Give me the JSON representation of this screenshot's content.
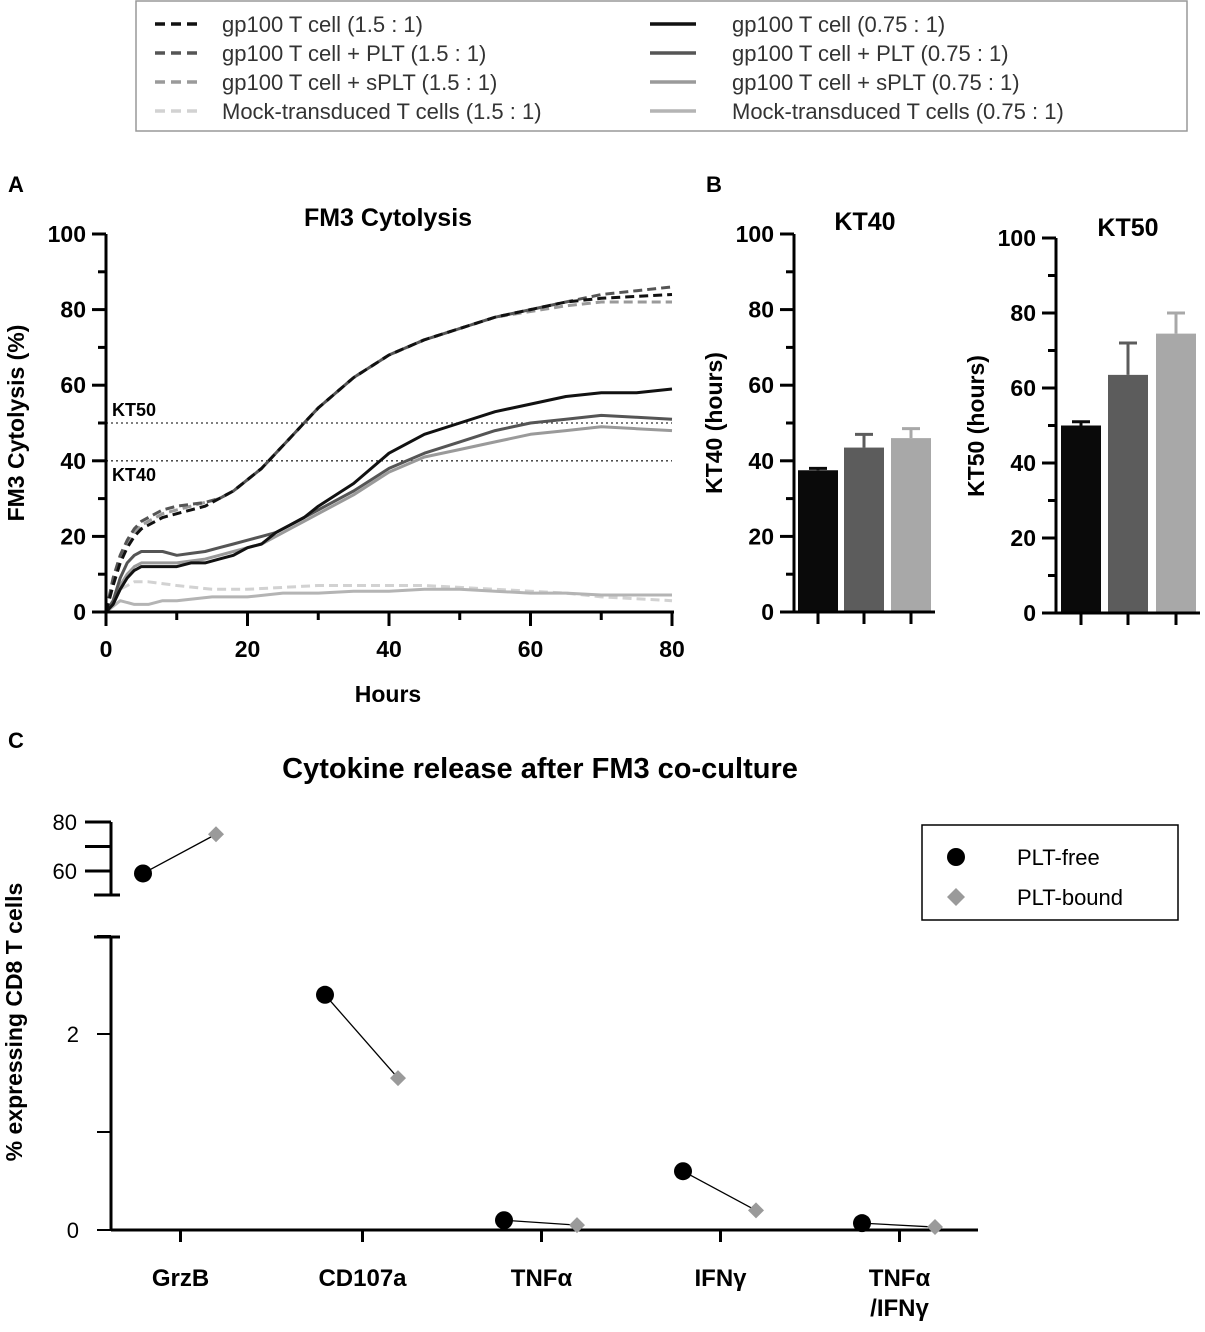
{
  "legend": {
    "entries": [
      {
        "label": "gp100 T cell (1.5 : 1)",
        "color": "#111111",
        "dashed": true
      },
      {
        "label": "gp100 T cell + PLT (1.5 : 1)",
        "color": "#555555",
        "dashed": true
      },
      {
        "label": "gp100 T cell + sPLT (1.5 : 1)",
        "color": "#9a9a9a",
        "dashed": true
      },
      {
        "label": "Mock-transduced T cells  (1.5 : 1)",
        "color": "#d2d2d2",
        "dashed": true
      },
      {
        "label": "gp100 T cell (0.75 : 1)",
        "color": "#111111",
        "dashed": false
      },
      {
        "label": "gp100 T cell + PLT (0.75 : 1)",
        "color": "#555555",
        "dashed": false
      },
      {
        "label": "gp100 T cell + sPLT (0.75 : 1)",
        "color": "#9a9a9a",
        "dashed": false
      },
      {
        "label": "Mock-transduced T cells (0.75 : 1)",
        "color": "#b4b4b4",
        "dashed": false
      }
    ]
  },
  "panels": {
    "a": "A",
    "b": "B",
    "c": "C"
  },
  "chart_data": [
    {
      "type": "line",
      "title": "FM3 Cytolysis",
      "xlabel": "Hours",
      "ylabel": "FM3 Cytolysis (%)",
      "xlim": [
        0,
        80
      ],
      "ylim": [
        0,
        100
      ],
      "xticks": [
        0,
        20,
        40,
        60,
        80
      ],
      "yticks": [
        0,
        20,
        40,
        60,
        80,
        100
      ],
      "reference_lines": [
        {
          "label": "KT50",
          "y": 50
        },
        {
          "label": "KT40",
          "y": 40
        }
      ],
      "series": [
        {
          "name": "gp100 T cell (1.5 : 1)",
          "color": "#111111",
          "dashed": true,
          "x": [
            0,
            1,
            2,
            3,
            4,
            5,
            6,
            8,
            10,
            12,
            14,
            16,
            18,
            20,
            22,
            24,
            26,
            28,
            30,
            35,
            40,
            45,
            50,
            55,
            60,
            65,
            70,
            75,
            80
          ],
          "y": [
            0,
            7,
            13,
            17,
            20,
            22,
            23,
            25,
            26,
            27,
            28,
            30,
            32,
            35,
            38,
            42,
            46,
            50,
            54,
            62,
            68,
            72,
            75,
            78,
            80,
            82,
            83,
            83.5,
            84
          ]
        },
        {
          "name": "gp100 T cell + PLT (1.5 : 1)",
          "color": "#555555",
          "dashed": true,
          "x": [
            0,
            1,
            2,
            3,
            4,
            5,
            6,
            8,
            10,
            12,
            14,
            16,
            18,
            20,
            22,
            24,
            26,
            28,
            30,
            35,
            40,
            45,
            50,
            55,
            60,
            65,
            70,
            75,
            80
          ],
          "y": [
            0,
            9,
            15,
            19,
            22,
            24,
            25,
            27,
            28,
            28.5,
            29,
            30,
            32,
            35,
            38,
            42,
            46,
            50,
            54,
            62,
            68,
            72,
            75,
            78,
            80,
            82,
            84,
            85,
            86
          ]
        },
        {
          "name": "gp100 T cell + sPLT (1.5 : 1)",
          "color": "#9a9a9a",
          "dashed": true,
          "x": [
            0,
            1,
            2,
            3,
            4,
            5,
            6,
            8,
            10,
            12,
            14,
            16,
            18,
            20,
            22,
            24,
            26,
            28,
            30,
            35,
            40,
            45,
            50,
            55,
            60,
            65,
            70,
            75,
            80
          ],
          "y": [
            0,
            8,
            14,
            18,
            21,
            23,
            24,
            26,
            27,
            28,
            29,
            30,
            32,
            35,
            38,
            42,
            46,
            50,
            54,
            62,
            68,
            72,
            75,
            78,
            79.5,
            81,
            82,
            82,
            82
          ]
        },
        {
          "name": "Mock-transduced T cells  (1.5 : 1)",
          "color": "#d2d2d2",
          "dashed": true,
          "x": [
            0,
            2,
            4,
            6,
            10,
            15,
            20,
            25,
            30,
            35,
            40,
            45,
            50,
            55,
            60,
            65,
            70,
            75,
            80
          ],
          "y": [
            0,
            6,
            8,
            8,
            7,
            6,
            6,
            6.5,
            7,
            7,
            7,
            7,
            6.5,
            6,
            5.5,
            5,
            4,
            3.5,
            3
          ]
        },
        {
          "name": "gp100 T cell (0.75 : 1)",
          "color": "#111111",
          "dashed": false,
          "x": [
            0,
            1,
            2,
            3,
            4,
            5,
            6,
            8,
            10,
            12,
            14,
            16,
            18,
            20,
            22,
            24,
            26,
            28,
            30,
            35,
            40,
            45,
            50,
            55,
            60,
            65,
            70,
            75,
            80
          ],
          "y": [
            0,
            2,
            6,
            9,
            11,
            12,
            12,
            12,
            12,
            13,
            13,
            14,
            15,
            17,
            18,
            21,
            23,
            25,
            28,
            34,
            42,
            47,
            50,
            53,
            55,
            57,
            58,
            58,
            59
          ]
        },
        {
          "name": "gp100 T cell + PLT (0.75 : 1)",
          "color": "#555555",
          "dashed": false,
          "x": [
            0,
            1,
            2,
            3,
            4,
            5,
            6,
            8,
            10,
            12,
            14,
            16,
            18,
            20,
            22,
            24,
            26,
            28,
            30,
            35,
            40,
            45,
            50,
            55,
            60,
            65,
            70,
            75,
            80
          ],
          "y": [
            0,
            3,
            9,
            13,
            15,
            16,
            16,
            16,
            15,
            15.5,
            16,
            17,
            18,
            19,
            20,
            21,
            23,
            25,
            27,
            32,
            38,
            42,
            45,
            48,
            50,
            51,
            52,
            51.5,
            51
          ]
        },
        {
          "name": "gp100 T cell + sPLT (0.75 : 1)",
          "color": "#9a9a9a",
          "dashed": false,
          "x": [
            0,
            1,
            2,
            3,
            4,
            5,
            6,
            8,
            10,
            12,
            14,
            16,
            18,
            20,
            22,
            24,
            26,
            28,
            30,
            35,
            40,
            45,
            50,
            55,
            60,
            65,
            70,
            75,
            80
          ],
          "y": [
            0,
            2,
            7,
            10,
            12,
            13,
            13,
            13,
            13,
            13.5,
            14,
            15,
            16,
            17,
            18,
            20,
            22,
            24,
            26,
            31,
            37,
            41,
            43,
            45,
            47,
            48,
            49,
            48.5,
            48
          ]
        },
        {
          "name": "Mock-transduced T cells (0.75 : 1)",
          "color": "#b4b4b4",
          "dashed": false,
          "x": [
            0,
            2,
            4,
            6,
            8,
            10,
            15,
            20,
            25,
            30,
            35,
            40,
            45,
            50,
            55,
            60,
            65,
            70,
            75,
            80
          ],
          "y": [
            0,
            3,
            2,
            2,
            3,
            3,
            4,
            4,
            5,
            5,
            5.5,
            5.5,
            6,
            6,
            5.5,
            5,
            5,
            4.5,
            4.5,
            4.5
          ]
        }
      ]
    },
    {
      "type": "bar",
      "title": "KT40",
      "ylabel": "KT40 (hours)",
      "ylim": [
        0,
        100
      ],
      "yticks": [
        0,
        20,
        40,
        60,
        80,
        100
      ],
      "values": [
        37.5,
        43.5,
        46
      ],
      "errors": [
        0.5,
        3.5,
        2.5
      ],
      "colors": [
        "#0a0a0a",
        "#5c5c5c",
        "#a8a8a8"
      ]
    },
    {
      "type": "bar",
      "title": "KT50",
      "ylabel": "KT50 (hours)",
      "ylim": [
        0,
        100
      ],
      "yticks": [
        0,
        20,
        40,
        60,
        80,
        100
      ],
      "values": [
        50,
        63.5,
        74.5
      ],
      "errors": [
        1,
        8.5,
        5.5
      ],
      "colors": [
        "#0a0a0a",
        "#5c5c5c",
        "#a8a8a8"
      ]
    },
    {
      "type": "scatter",
      "title": "Cytokine release after FM3 co-culture",
      "ylabel": "% expressing CD8 T cells",
      "categories": [
        "GrzB",
        "CD107a",
        "TNFα",
        "IFNγ",
        "TNFα /IFNγ"
      ],
      "category_lines": [
        [
          "GrzB"
        ],
        [
          "CD107a"
        ],
        [
          "TNFα"
        ],
        [
          "IFNγ"
        ],
        [
          "TNFα",
          "/IFNγ"
        ]
      ],
      "upper_ticks": [
        60,
        80
      ],
      "lower_ticks": [
        0,
        2
      ],
      "series": [
        {
          "name": "PLT-free",
          "marker": "circle",
          "color": "#000000",
          "values": [
            59,
            2.4,
            0.1,
            0.6,
            0.07
          ]
        },
        {
          "name": "PLT-bound",
          "marker": "diamond",
          "color": "#9a9a9a",
          "values": [
            75,
            1.55,
            0.05,
            0.2,
            0.03
          ]
        }
      ]
    }
  ]
}
